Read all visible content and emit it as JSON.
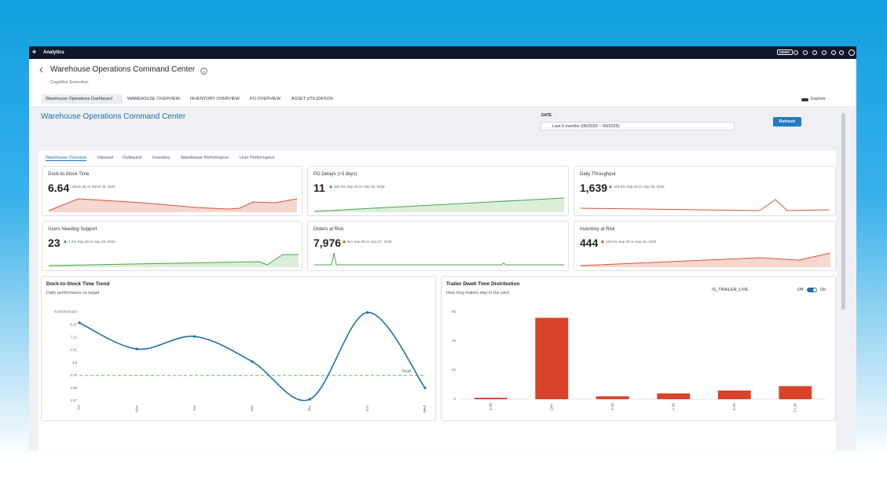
{
  "app": {
    "name": "Analytics",
    "badge": "DEMO"
  },
  "header": {
    "title": "Warehouse Operations Command Center",
    "subtitle": "Cognitive Execution",
    "explore": "Explore"
  },
  "nav": [
    "Warehouse Operations Dashboard",
    "WAREHOUSE OVERVIEW",
    "INVENTORY OVERVIEW",
    "PO OVERVIEW",
    "ASSET UTILIZATION"
  ],
  "dashboard": {
    "title": "Warehouse Operations Command Center",
    "date_label": "DATE",
    "date_value": "Last 6 months (05/2025 – 09/2025)",
    "refresh": "Refresh"
  },
  "tabs": [
    "Warehouse Overview",
    "Inbound",
    "Outbound",
    "Inventory",
    "Warehouse Performance",
    "User Performance"
  ],
  "kpis": [
    {
      "title": "Dock-to-Stock Time",
      "value": "6.64",
      "period": "Week 38 vs Week 30, 2025"
    },
    {
      "title": "PO Delays (>3 days)",
      "value": "11",
      "delta": "450.0%",
      "period": "Sep 29 vs Sep 28, 2025"
    },
    {
      "title": "Daily Throughput",
      "value": "1,639",
      "delta": "103.0%",
      "period": "Sep 29 vs Sep 28, 2025"
    },
    {
      "title": "Users Needing Support",
      "value": "23",
      "delta": "4.2%",
      "period": "Sep 29 vs Sep 28, 2025"
    },
    {
      "title": "Orders at Risk",
      "value": "7,976",
      "delta": "N/A",
      "period": "Sep 28 vs Sep 27, 2025"
    },
    {
      "title": "Inventory at Risk",
      "value": "444",
      "delta": "115.5%",
      "period": "Sep 29 vs Sep 28, 2025"
    }
  ],
  "chart_data": [
    {
      "type": "line",
      "title": "Dock-to-Stock Time Trend",
      "subtitle": "Daily performance vs target",
      "categories": [
        "Fri",
        "Mon",
        "Sat",
        "Sun",
        "Thu",
        "Tue",
        "Wed"
      ],
      "values": [
        8.4,
        6.1,
        7.2,
        5.0,
        1.7,
        9.3,
        2.7
      ],
      "color": "#1f6fa8",
      "target": 3.79,
      "target_label": "Target",
      "target_color": "#5cb85c",
      "ylim": [
        1.57,
        9.3444444444
      ],
      "yticks": [
        1.57,
        2.68,
        3.79,
        4.9,
        6.01,
        7.12,
        8.23,
        9.3444444444
      ]
    },
    {
      "type": "bar",
      "title": "Trailer Dwell Time Distribution",
      "subtitle": "How long trailers stay in the yard",
      "filter_label": "IS_TRAILER_LIVE",
      "toggle_off": "Off",
      "toggle_on": "On",
      "categories": [
        "0-2h",
        "12h+",
        "2-4h",
        "4-6h",
        "6-8h",
        "8-12h"
      ],
      "values": [
        1,
        56,
        2,
        4,
        6,
        9
      ],
      "color": "#d9432a",
      "ylim": [
        0,
        60
      ],
      "yticks": [
        0,
        20,
        40,
        60
      ]
    }
  ]
}
